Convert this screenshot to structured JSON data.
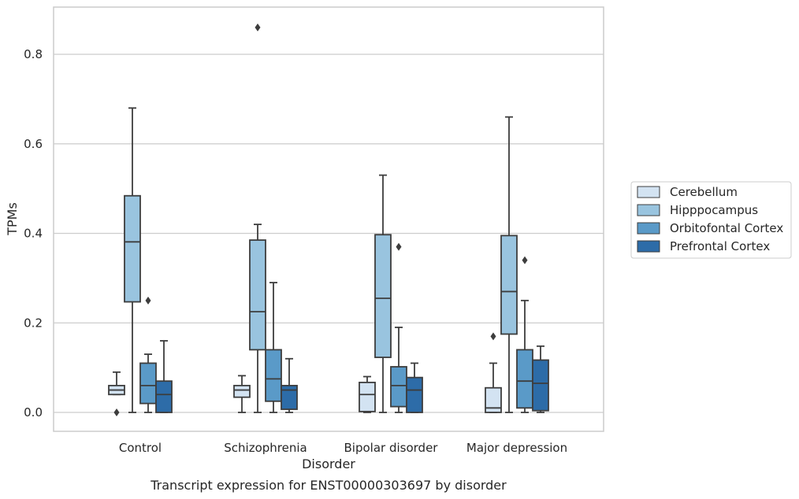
{
  "caption": "Transcript expression for ENST00000303697 by disorder",
  "chart_data": {
    "type": "boxplot",
    "xlabel": "Disorder",
    "ylabel": "TPMs",
    "ylim": [
      -0.042,
      0.905
    ],
    "yticks": [
      0.0,
      0.2,
      0.4,
      0.6,
      0.8
    ],
    "ytick_labels": [
      "0.0",
      "0.2",
      "0.4",
      "0.6",
      "0.8"
    ],
    "grid": "horizontal",
    "legend_position": "right",
    "categories": [
      "Control",
      "Schizophrenia",
      "Bipolar disorder",
      "Major depression"
    ],
    "series": [
      {
        "name": "Cerebellum",
        "color": "#d3e3f2",
        "boxes": [
          {
            "whislo": 0.04,
            "q1": 0.04,
            "med": 0.05,
            "q3": 0.06,
            "whishi": 0.09,
            "fliers": [
              0.0
            ]
          },
          {
            "whislo": 0.0,
            "q1": 0.034,
            "med": 0.05,
            "q3": 0.06,
            "whishi": 0.082,
            "fliers": []
          },
          {
            "whislo": 0.0,
            "q1": 0.002,
            "med": 0.04,
            "q3": 0.067,
            "whishi": 0.08,
            "fliers": []
          },
          {
            "whislo": 0.0,
            "q1": 0.0,
            "med": 0.01,
            "q3": 0.055,
            "whishi": 0.11,
            "fliers": [
              0.17
            ]
          }
        ]
      },
      {
        "name": "Hipppocampus",
        "color": "#99c4df",
        "boxes": [
          {
            "whislo": 0.0,
            "q1": 0.247,
            "med": 0.381,
            "q3": 0.484,
            "whishi": 0.68,
            "fliers": []
          },
          {
            "whislo": 0.0,
            "q1": 0.14,
            "med": 0.225,
            "q3": 0.385,
            "whishi": 0.42,
            "fliers": [
              0.86
            ]
          },
          {
            "whislo": 0.0,
            "q1": 0.123,
            "med": 0.255,
            "q3": 0.397,
            "whishi": 0.53,
            "fliers": []
          },
          {
            "whislo": 0.0,
            "q1": 0.175,
            "med": 0.27,
            "q3": 0.395,
            "whishi": 0.66,
            "fliers": []
          }
        ]
      },
      {
        "name": "Orbitofontal Cortex",
        "color": "#5a9ac8",
        "boxes": [
          {
            "whislo": 0.0,
            "q1": 0.02,
            "med": 0.06,
            "q3": 0.11,
            "whishi": 0.13,
            "fliers": [
              0.25
            ]
          },
          {
            "whislo": 0.0,
            "q1": 0.025,
            "med": 0.075,
            "q3": 0.14,
            "whishi": 0.29,
            "fliers": []
          },
          {
            "whislo": 0.0,
            "q1": 0.013,
            "med": 0.06,
            "q3": 0.102,
            "whishi": 0.19,
            "fliers": [
              0.37
            ]
          },
          {
            "whislo": 0.0,
            "q1": 0.01,
            "med": 0.07,
            "q3": 0.14,
            "whishi": 0.25,
            "fliers": [
              0.34
            ]
          }
        ]
      },
      {
        "name": "Prefrontal Cortex",
        "color": "#2d6ca8",
        "boxes": [
          {
            "whislo": 0.0,
            "q1": 0.0,
            "med": 0.04,
            "q3": 0.07,
            "whishi": 0.16,
            "fliers": []
          },
          {
            "whislo": 0.0,
            "q1": 0.007,
            "med": 0.05,
            "q3": 0.06,
            "whishi": 0.12,
            "fliers": []
          },
          {
            "whislo": 0.0,
            "q1": 0.0,
            "med": 0.05,
            "q3": 0.078,
            "whishi": 0.11,
            "fliers": []
          },
          {
            "whislo": 0.0,
            "q1": 0.004,
            "med": 0.065,
            "q3": 0.117,
            "whishi": 0.148,
            "fliers": []
          }
        ]
      }
    ]
  }
}
